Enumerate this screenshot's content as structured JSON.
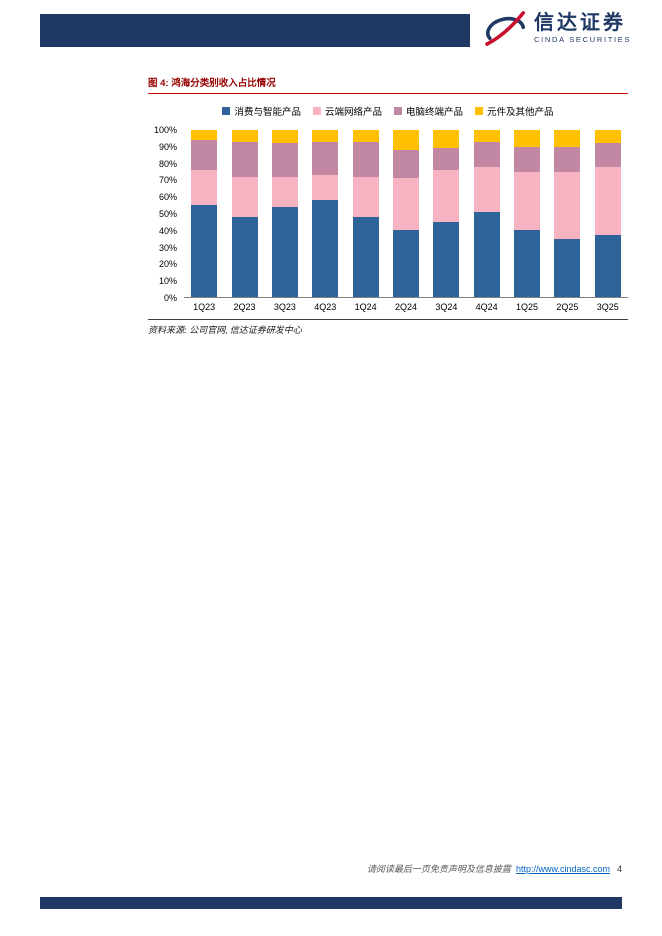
{
  "header": {
    "logo_cn": "信达证券",
    "logo_en": "CINDA SECURITIES"
  },
  "figure": {
    "label": "图 4: 鸿海分类别收入占比情况",
    "source_note": "资料来源: 公司官网, 信达证券研发中心"
  },
  "footer": {
    "disclaimer": "请阅读最后一页免责声明及信息披露",
    "url": "http://www.cindasc.com",
    "page_number": "4"
  },
  "colors": {
    "brand_navy": "#1F3864",
    "brand_red": "#C8102E",
    "figure_title_red": "#990000",
    "figure_rule_red": "#CC0000",
    "link_blue": "#0563C1"
  },
  "chart_data": {
    "type": "bar",
    "stacked": true,
    "title": "鸿海分类别收入占比情况",
    "categories": [
      "1Q23",
      "2Q23",
      "3Q23",
      "4Q23",
      "1Q24",
      "2Q24",
      "3Q24",
      "4Q24",
      "1Q25",
      "2Q25",
      "3Q25"
    ],
    "series": [
      {
        "name": "消费与智能产品",
        "color": "#2E6399",
        "values": [
          55,
          48,
          54,
          58,
          48,
          40,
          45,
          51,
          40,
          35,
          37
        ]
      },
      {
        "name": "云端网络产品",
        "color": "#F8B3C3",
        "values": [
          21,
          24,
          18,
          15,
          24,
          31,
          31,
          27,
          35,
          40,
          41
        ]
      },
      {
        "name": "电脑终端产品",
        "color": "#C287A2",
        "values": [
          18,
          21,
          20,
          20,
          21,
          17,
          13,
          15,
          15,
          15,
          14
        ]
      },
      {
        "name": "元件及其他产品",
        "color": "#FFC000",
        "values": [
          6,
          7,
          8,
          7,
          7,
          12,
          11,
          7,
          10,
          10,
          8
        ]
      }
    ],
    "xlabel": "",
    "ylabel": "",
    "ylim": [
      0,
      100
    ],
    "ytick_step": 10,
    "ytick_suffix": "%",
    "legend_position": "top",
    "grid": false
  }
}
